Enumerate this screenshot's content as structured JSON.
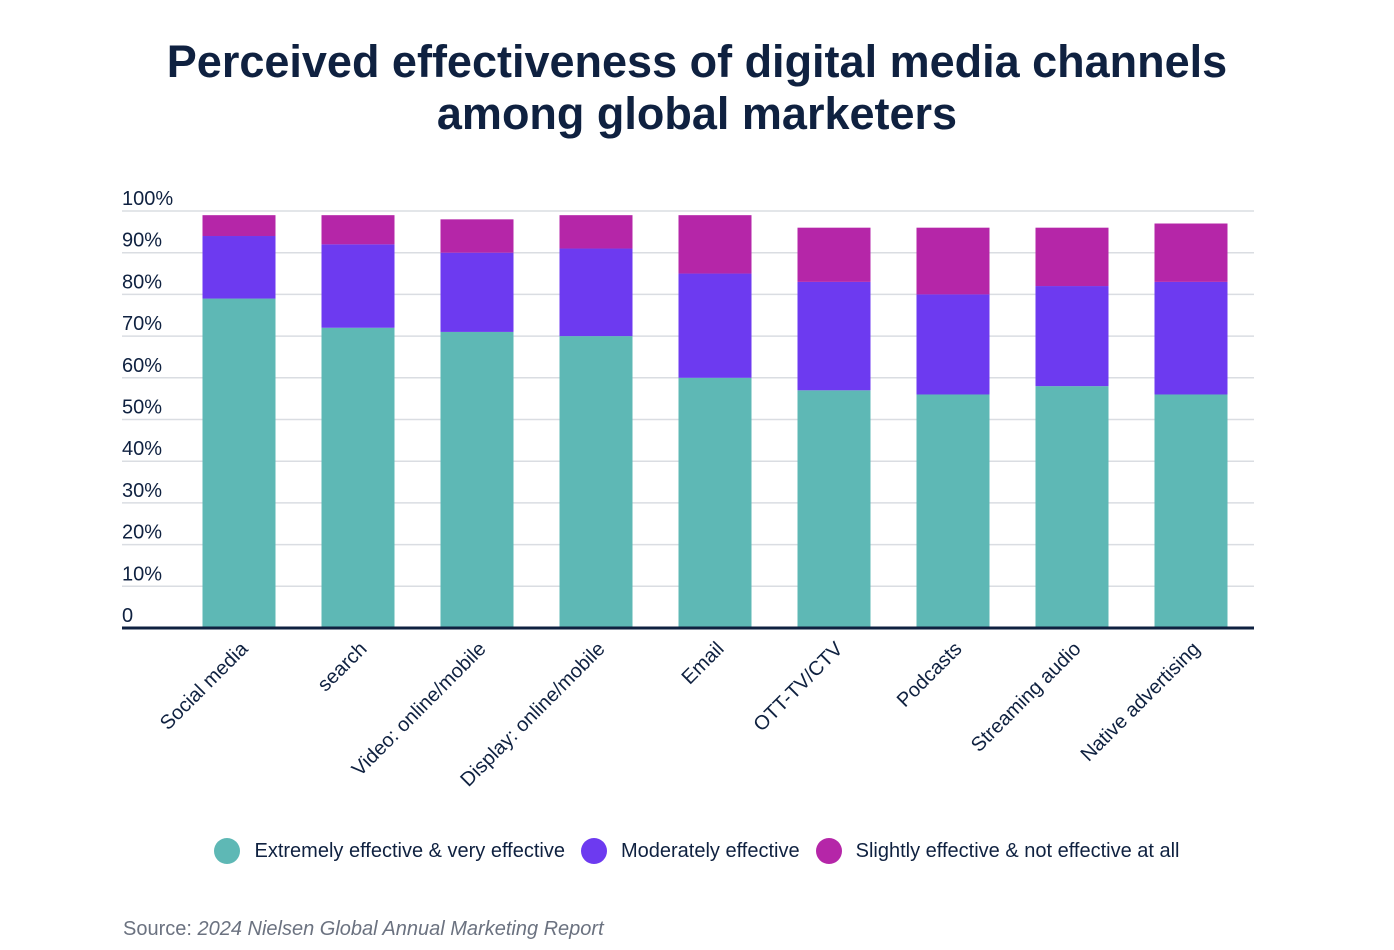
{
  "chart_data": {
    "type": "bar",
    "stacked": true,
    "title_lines": [
      "Perceived effectiveness of digital media channels",
      "among global marketers"
    ],
    "categories": [
      "Social media",
      "search",
      "Video: online/mobile",
      "Display: online/mobile",
      "Email",
      "OTT-TV/CTV",
      "Podcasts",
      "Streaming audio",
      "Native advertising"
    ],
    "series": [
      {
        "name": "Extremely effective & very effective",
        "color": "#5eb8b5",
        "values": [
          79,
          72,
          71,
          70,
          60,
          57,
          56,
          58,
          56
        ]
      },
      {
        "name": "Moderately effective",
        "color": "#6d3af0",
        "values": [
          15,
          20,
          19,
          21,
          25,
          26,
          24,
          24,
          27
        ]
      },
      {
        "name": "Slightly effective & not effective at all",
        "color": "#b526a8",
        "values": [
          5,
          7,
          8,
          8,
          14,
          13,
          16,
          14,
          14
        ]
      }
    ],
    "yticks": [
      "0",
      "10%",
      "20%",
      "30%",
      "40%",
      "50%",
      "60%",
      "70%",
      "80%",
      "90%",
      "100%"
    ],
    "ylim": [
      0,
      100
    ],
    "grid": true,
    "legend_position": "bottom",
    "xlabel": "",
    "ylabel": ""
  },
  "source": {
    "prefix": "Source: ",
    "text": "2024 Nielsen Global Annual Marketing Report"
  }
}
